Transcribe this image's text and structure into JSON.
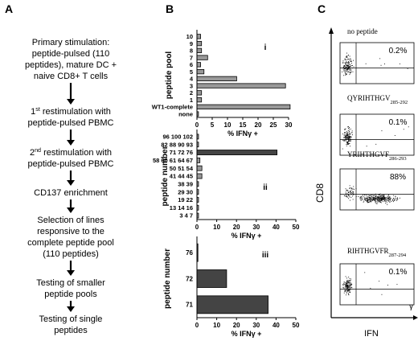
{
  "panel_labels": {
    "a": "A",
    "b": "B",
    "c": "C"
  },
  "flow_steps": [
    [
      "Primary stimulation:",
      "peptide-pulsed (110",
      "peptides), mature DC +",
      "naive CD8+ T cells"
    ],
    [
      "1st restimulation with",
      "peptide-pulsed PBMC"
    ],
    [
      "2nd restimulation with",
      "peptide-pulsed PBMC"
    ],
    [
      "CD137 enrichment"
    ],
    [
      "Selection of lines",
      "responsive to the",
      "complete peptide pool",
      "(110 peptides)"
    ],
    [
      "Testing of smaller",
      "peptide pools"
    ],
    [
      "Testing of single",
      "peptides"
    ]
  ],
  "chart_data": [
    {
      "type": "bar",
      "orientation": "horizontal",
      "roman": "i",
      "ylabel": "peptide pool",
      "xlabel": "% IFNγ +",
      "xlim": [
        0,
        30
      ],
      "xticks": [
        0,
        5,
        10,
        15,
        20,
        25,
        30
      ],
      "categories": [
        "10",
        "9",
        "8",
        "7",
        "6",
        "5",
        "4",
        "3",
        "2",
        "1",
        "WT1-complete",
        "none"
      ],
      "values": [
        1.2,
        1.5,
        1.5,
        3.5,
        1.2,
        2.3,
        13.0,
        29.0,
        1.5,
        1.5,
        30.5,
        0.5
      ],
      "colors": [
        "#999999",
        "#999999",
        "#999999",
        "#999999",
        "#999999",
        "#999999",
        "#999999",
        "#999999",
        "#999999",
        "#999999",
        "#999999",
        "#999999"
      ]
    },
    {
      "type": "bar",
      "orientation": "horizontal",
      "roman": "ii",
      "ylabel": "peptide number",
      "xlabel": "% IFNγ +",
      "xlim": [
        0,
        50
      ],
      "xticks": [
        0,
        10,
        20,
        30,
        40,
        50
      ],
      "categories": [
        "96 100 102",
        "82 88 90 93",
        "71 72 76",
        "58 60 61 64 67",
        "50 51 54",
        "41 44 45",
        "38 39",
        "29 30",
        "19 22",
        "13 14 16",
        "3 4 7"
      ],
      "values": [
        0.8,
        0.8,
        40.5,
        1.5,
        2.5,
        2.5,
        0.8,
        0.8,
        0.8,
        0.8,
        0.8
      ],
      "colors": [
        "#999999",
        "#999999",
        "#444444",
        "#999999",
        "#999999",
        "#999999",
        "#999999",
        "#999999",
        "#999999",
        "#999999",
        "#999999"
      ]
    },
    {
      "type": "bar",
      "orientation": "horizontal",
      "roman": "iii",
      "ylabel": "peptide number",
      "xlabel": "% IFNγ +",
      "xlim": [
        0,
        50
      ],
      "xticks": [
        0,
        10,
        20,
        30,
        40,
        50
      ],
      "categories": [
        "76",
        "72",
        "71"
      ],
      "values": [
        0.5,
        15.0,
        36.0
      ],
      "colors": [
        "#444444",
        "#444444",
        "#444444"
      ]
    },
    {
      "type": "scatter",
      "ylabel": "CD8",
      "xlabel": "IFN",
      "xlabel_suffix": "γ",
      "plots": [
        {
          "title": "no peptide",
          "subscript": "",
          "percent": "0.2%"
        },
        {
          "title": "QYRIHTHGV",
          "subscript": "285-292",
          "percent": "0.1%"
        },
        {
          "title": "YRIHTHGVF",
          "subscript": "286-293",
          "percent": "88%"
        },
        {
          "title": "RIHTHGVFR",
          "subscript": "287-294",
          "percent": "0.1%"
        }
      ]
    }
  ]
}
